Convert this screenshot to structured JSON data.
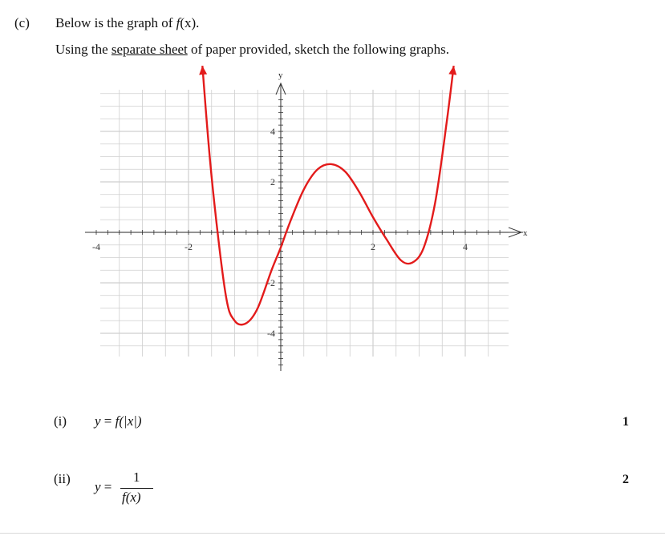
{
  "question": {
    "label": "(c)",
    "line1": {
      "prefix": "Below is the graph of ",
      "func": "f",
      "arg": "(x)",
      "suffix": "."
    },
    "line2": {
      "prefix": "Using the ",
      "underlined": "separate sheet",
      "suffix": " of paper provided, sketch the following graphs."
    }
  },
  "graph": {
    "x_axis_label": "x",
    "y_axis_label": "y",
    "x_ticks": [
      {
        "value": -4,
        "label": "-4"
      },
      {
        "value": -2,
        "label": "-2"
      },
      {
        "value": 2,
        "label": "2"
      },
      {
        "value": 4,
        "label": "4"
      }
    ],
    "y_ticks": [
      {
        "value": 4,
        "label": "4"
      },
      {
        "value": 2,
        "label": "2"
      },
      {
        "value": -2,
        "label": "-2"
      },
      {
        "value": -4,
        "label": "-4"
      }
    ],
    "curve_color": "#e31b1b",
    "grid_color": "#cfcfcf",
    "axis_color": "#333333",
    "curve_points": [
      [
        -1.7,
        6.6
      ],
      [
        -1.5,
        2.2
      ],
      [
        -1.2,
        -2.4
      ],
      [
        -1.0,
        -3.5
      ],
      [
        -0.75,
        -3.6
      ],
      [
        -0.5,
        -3.0
      ],
      [
        -0.2,
        -1.5
      ],
      [
        0.0,
        -0.6
      ],
      [
        0.2,
        0.4
      ],
      [
        0.5,
        1.7
      ],
      [
        0.8,
        2.5
      ],
      [
        1.1,
        2.7
      ],
      [
        1.4,
        2.4
      ],
      [
        1.7,
        1.6
      ],
      [
        2.0,
        0.6
      ],
      [
        2.3,
        -0.3
      ],
      [
        2.6,
        -1.1
      ],
      [
        2.85,
        -1.2
      ],
      [
        3.1,
        -0.6
      ],
      [
        3.35,
        1.2
      ],
      [
        3.6,
        4.4
      ],
      [
        3.75,
        6.6
      ]
    ]
  },
  "parts": [
    {
      "label": "(i)",
      "lhs": "y",
      "eq": " = ",
      "rhs": "f(|x|)",
      "marks": "1"
    },
    {
      "label": "(ii)",
      "lhs": "y",
      "eq": " = ",
      "numerator": "1",
      "denominator": "f(x)",
      "marks": "2"
    }
  ]
}
